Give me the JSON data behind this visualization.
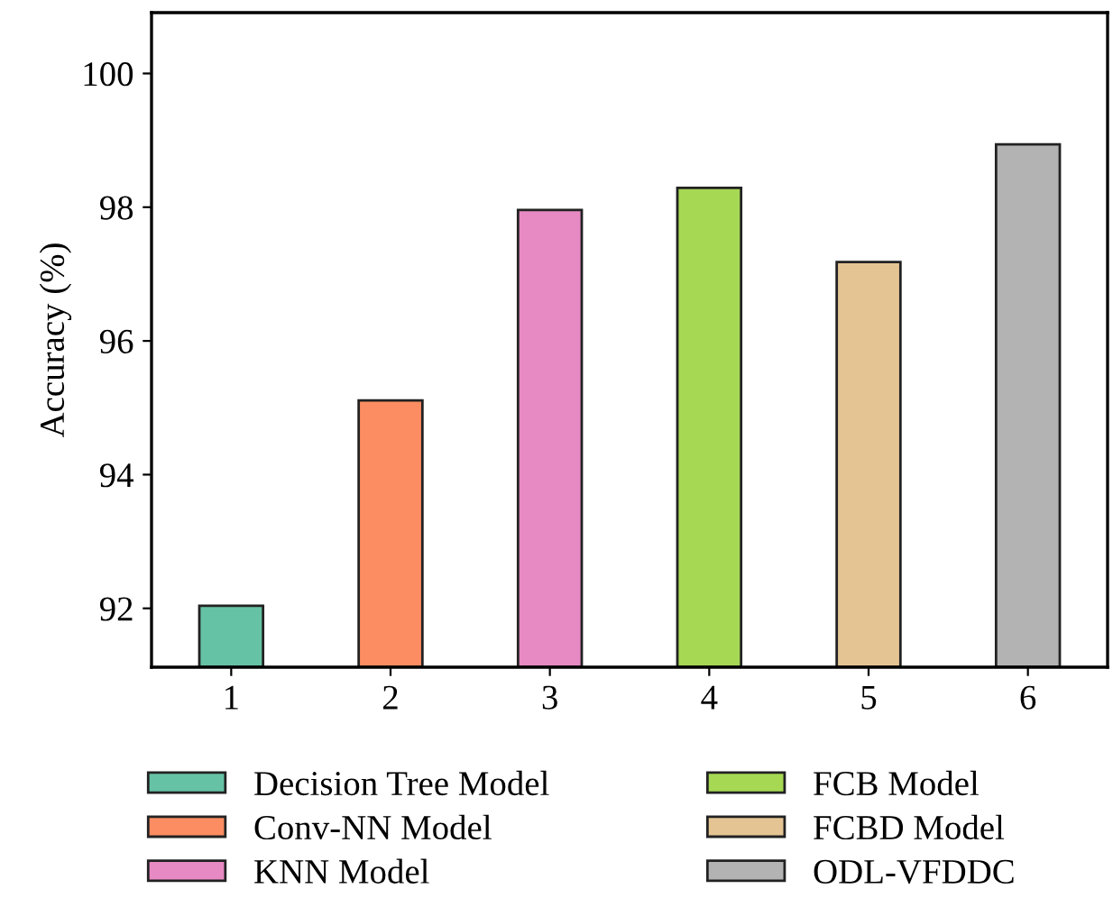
{
  "chart_data": {
    "type": "bar",
    "ylabel": "Accuracy (%)",
    "categories": [
      "1",
      "2",
      "3",
      "4",
      "5",
      "6"
    ],
    "series": [
      {
        "name": "Decision Tree Model",
        "color": "#66c2a5",
        "values": [
          92.04,
          null,
          null,
          null,
          null,
          null
        ]
      },
      {
        "name": "Conv-NN Model",
        "color": "#fc8d62",
        "values": [
          null,
          95.11,
          null,
          null,
          null,
          null
        ]
      },
      {
        "name": "KNN Model",
        "color": "#e78ac3",
        "values": [
          null,
          null,
          97.96,
          null,
          null,
          null
        ]
      },
      {
        "name": "FCB Model",
        "color": "#a6d854",
        "values": [
          null,
          null,
          null,
          98.29,
          null,
          null
        ]
      },
      {
        "name": "FCBD Model",
        "color": "#e5c494",
        "values": [
          null,
          null,
          null,
          null,
          97.18,
          null
        ]
      },
      {
        "name": "ODL-VFDDC",
        "color": "#b3b3b3",
        "values": [
          null,
          null,
          null,
          null,
          null,
          98.94
        ]
      }
    ],
    "ylim": [
      91.12,
      100.91
    ],
    "yticks": [
      92,
      94,
      96,
      98,
      100
    ],
    "grid": false,
    "legend": "bottom"
  }
}
